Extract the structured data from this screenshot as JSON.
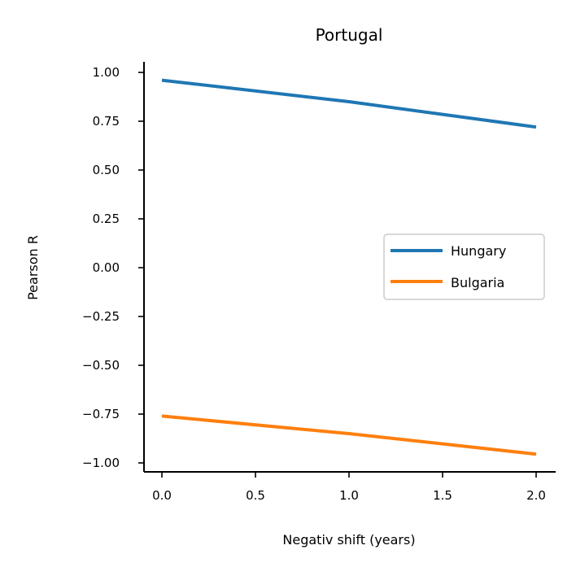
{
  "chart_data": {
    "type": "line",
    "title": "Portugal",
    "xlabel": "Negativ shift (years)",
    "ylabel": "Pearson R",
    "x": [
      0,
      1,
      2
    ],
    "xlim": [
      -0.1,
      2.1
    ],
    "ylim": [
      -1.05,
      1.06
    ],
    "x_ticks": [
      "0.0",
      "0.5",
      "1.0",
      "1.5",
      "2.0"
    ],
    "y_ticks": [
      "1.00",
      "0.75",
      "0.50",
      "0.25",
      "0.00",
      "−0.25",
      "−0.50",
      "−0.75",
      "−1.00"
    ],
    "grid": false,
    "legend_position": "center-right",
    "series": [
      {
        "name": "Hungary",
        "color": "#1f77b4",
        "values": [
          0.96,
          0.85,
          0.72
        ]
      },
      {
        "name": "Bulgaria",
        "color": "#ff7f0e",
        "values": [
          -0.76,
          -0.85,
          -0.955
        ]
      }
    ]
  }
}
